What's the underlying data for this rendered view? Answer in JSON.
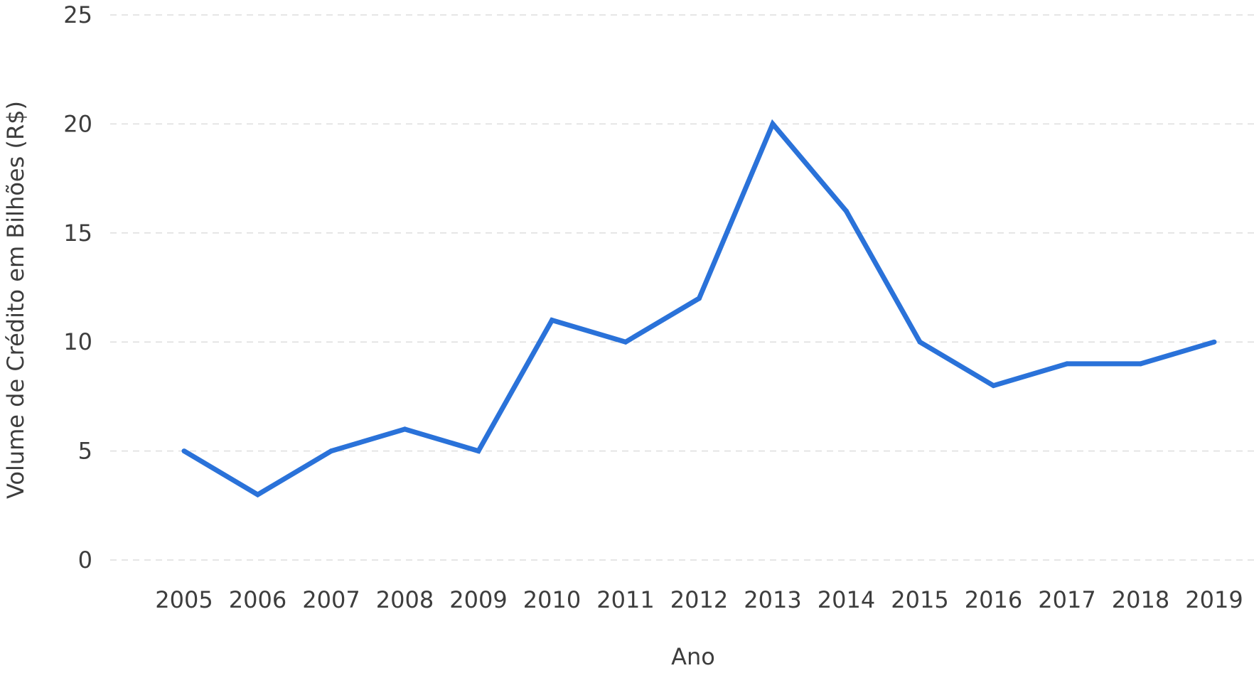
{
  "chart_data": {
    "type": "line",
    "x": [
      "2005",
      "2006",
      "2007",
      "2008",
      "2009",
      "2010",
      "2011",
      "2012",
      "2013",
      "2014",
      "2015",
      "2016",
      "2017",
      "2018",
      "2019"
    ],
    "series": [
      {
        "values": [
          5,
          3,
          5,
          6,
          5,
          11,
          10,
          12,
          20,
          16,
          10,
          8,
          9,
          9,
          10
        ],
        "color": "#2a72d9"
      }
    ],
    "xlabel": "Ano",
    "ylabel": "Volume de Crédito em Bilhões (R$)",
    "ylim": [
      0,
      25
    ],
    "yticks": [
      0,
      5,
      10,
      15,
      20,
      25
    ],
    "grid": "horizontal-dashed",
    "colors": {
      "grid": "#dedede",
      "text": "#3d3d3d",
      "line": "#2a72d9"
    }
  }
}
